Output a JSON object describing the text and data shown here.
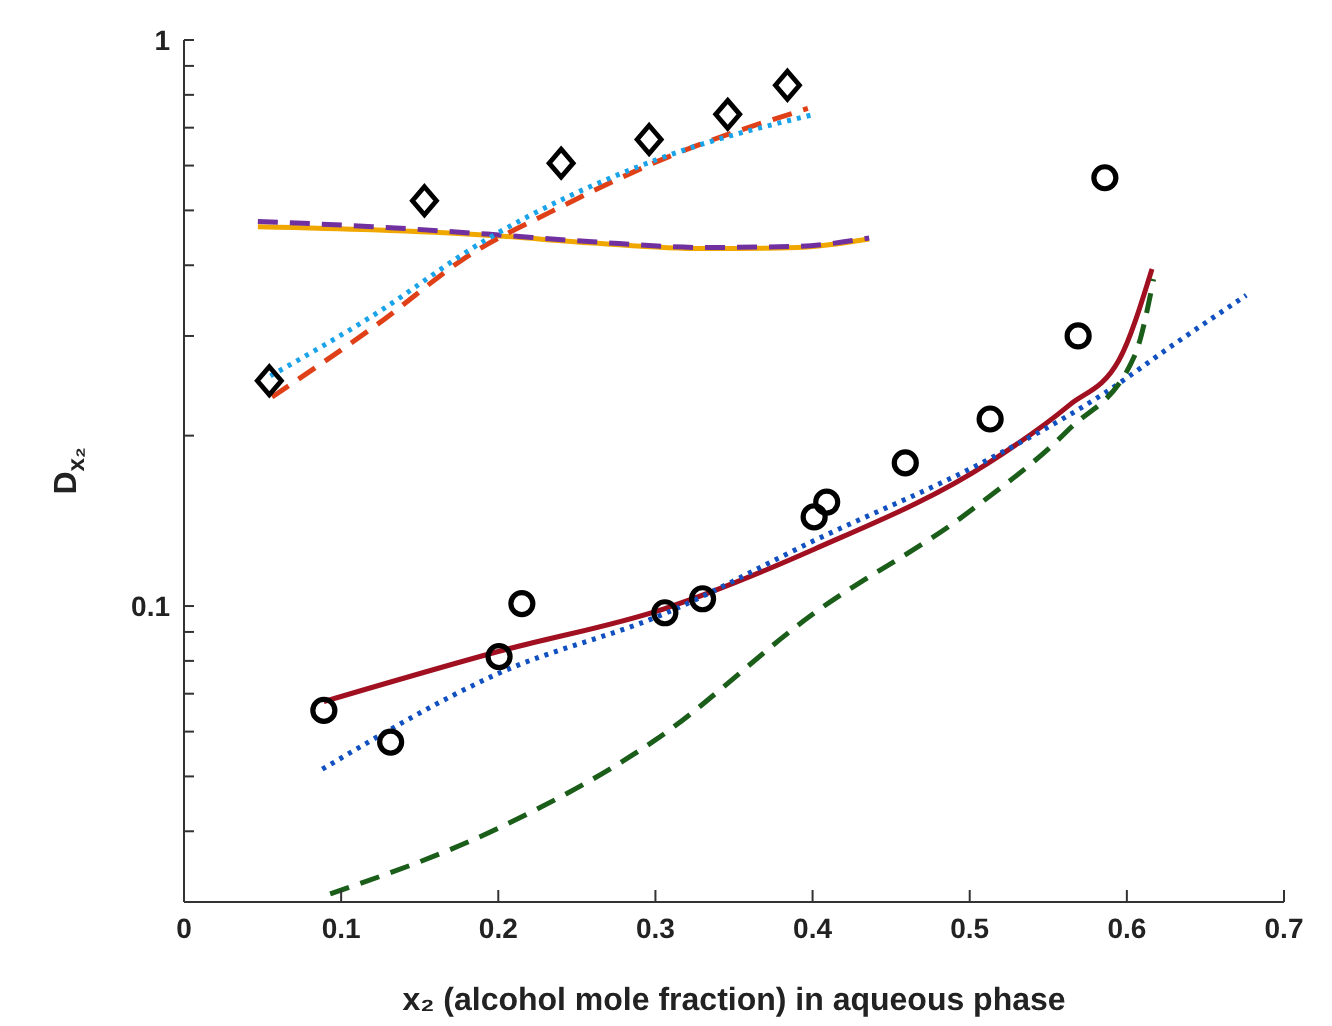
{
  "chart_data": {
    "type": "line",
    "xlabel": "x₂ (alcohol mole fraction) in aqueous phase",
    "ylabel": "D$_{x₂}$",
    "log": "y",
    "grid": false,
    "legend": false,
    "xlim": [
      0,
      0.7
    ],
    "xticks": [
      0,
      0.1,
      0.2,
      0.3,
      0.4,
      0.5,
      0.6,
      0.7
    ],
    "ylim": [
      0.03,
      1
    ],
    "yticks": [
      {
        "value": 0.04,
        "label": null
      },
      {
        "value": 0.05,
        "label": null
      },
      {
        "value": 0.06,
        "label": null
      },
      {
        "value": 0.07,
        "label": null
      },
      {
        "value": 0.08,
        "label": null
      },
      {
        "value": 0.09,
        "label": null
      },
      0.1,
      {
        "value": 0.2,
        "label": null
      },
      {
        "value": 0.3,
        "label": null
      },
      {
        "value": 0.4,
        "label": null
      },
      {
        "value": 0.5,
        "label": null
      },
      {
        "value": 0.6,
        "label": null
      },
      {
        "value": 0.7,
        "label": null
      },
      {
        "value": 0.8,
        "label": null
      },
      {
        "value": 0.9,
        "label": null
      },
      1
    ],
    "series": [
      {
        "type": "scatter",
        "marker": "circle",
        "color": "#000000",
        "x": [
          0.089,
          0.1315,
          0.2005,
          0.215,
          0.306,
          0.33,
          0.401,
          0.409,
          0.459,
          0.513,
          0.569,
          0.586
        ],
        "values": [
          0.0654,
          0.0575,
          0.0814,
          0.101,
          0.0973,
          0.103,
          0.1437,
          0.1526,
          0.179,
          0.214,
          0.3,
          0.571
        ]
      },
      {
        "type": "scatter",
        "marker": "diamond",
        "color": "#000000",
        "x": [
          0.0543,
          0.153,
          0.24,
          0.296,
          0.346,
          0.384
        ],
        "values": [
          0.25,
          0.52,
          0.606,
          0.667,
          0.739,
          0.832
        ]
      },
      {
        "type": "line",
        "line_style": "solid",
        "color": "#f0a800",
        "x": [
          0.047,
          0.12,
          0.193,
          0.26,
          0.33,
          0.39,
          0.436
        ],
        "values": [
          0.468,
          0.462,
          0.452,
          0.438,
          0.428,
          0.43,
          0.445
        ]
      },
      {
        "type": "line",
        "line_style": "dashed",
        "color": "#7030a0",
        "x": [
          0.047,
          0.12,
          0.193,
          0.26,
          0.33,
          0.39,
          0.436
        ],
        "values": [
          0.478,
          0.468,
          0.454,
          0.44,
          0.43,
          0.432,
          0.447
        ]
      },
      {
        "type": "line",
        "line_style": "dashed",
        "color": "#e04018",
        "x": [
          0.056,
          0.122,
          0.184,
          0.234,
          0.309,
          0.397
        ],
        "values": [
          0.234,
          0.313,
          0.421,
          0.498,
          0.623,
          0.757
        ]
      },
      {
        "type": "line",
        "line_style": "dotted",
        "color": "#1aa3e8",
        "x": [
          0.055,
          0.118,
          0.193,
          0.301,
          0.401
        ],
        "values": [
          0.255,
          0.323,
          0.445,
          0.615,
          0.739
        ]
      },
      {
        "type": "line",
        "line_style": "solid",
        "color": "#a01020",
        "x": [
          0.089,
          0.2005,
          0.306,
          0.401,
          0.512,
          0.563,
          0.595,
          0.616
        ],
        "values": [
          0.0678,
          0.0832,
          0.099,
          0.126,
          0.179,
          0.226,
          0.272,
          0.394
        ]
      },
      {
        "type": "line",
        "line_style": "dotted",
        "color": "#1050c0",
        "x": [
          0.088,
          0.2,
          0.306,
          0.401,
          0.512,
          0.586,
          0.63,
          0.676
        ],
        "values": [
          0.0515,
          0.076,
          0.097,
          0.1305,
          0.1816,
          0.238,
          0.29,
          0.354
        ]
      },
      {
        "type": "line",
        "line_style": "dashed",
        "color": "#1a5e1a",
        "x": [
          0.093,
          0.2,
          0.3,
          0.4,
          0.5,
          0.563,
          0.605,
          0.617
        ],
        "values": [
          0.031,
          0.0405,
          0.058,
          0.0967,
          0.147,
          0.205,
          0.277,
          0.378
        ]
      }
    ]
  }
}
